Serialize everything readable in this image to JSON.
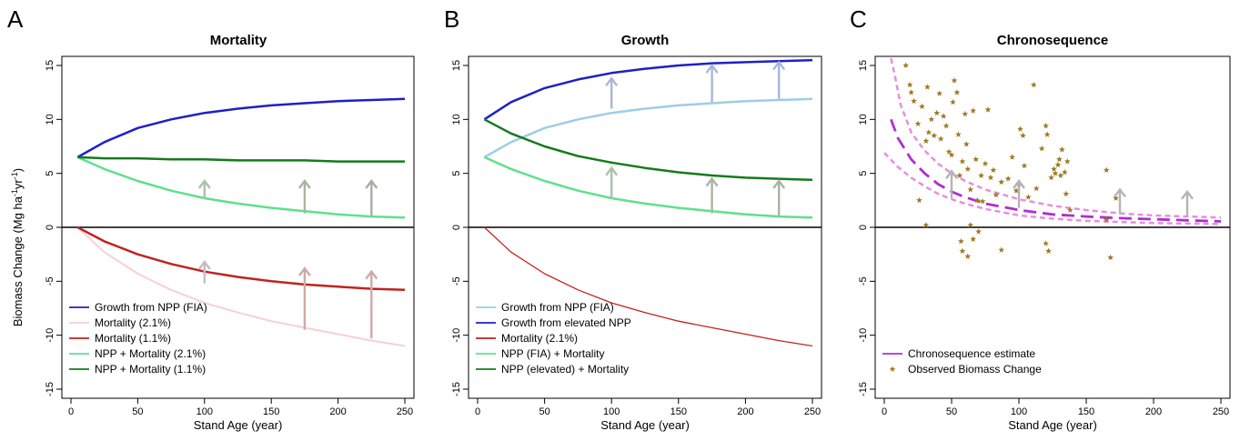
{
  "figure": {
    "ylabel_main": "Biomass Change (Mg ha",
    "ylabel_sup1": "-1",
    "ylabel_mid": "yr",
    "ylabel_sup2": "-1",
    "ylabel_end": ")"
  },
  "chart_data": [
    {
      "letter": "A",
      "title": "Mortality",
      "type": "line",
      "xlabel": "Stand Age (year)",
      "xlim": [
        0,
        250
      ],
      "ylim": [
        -15,
        15
      ],
      "xticks": [
        0,
        50,
        100,
        150,
        200,
        250
      ],
      "yticks": [
        -15,
        -10,
        -5,
        0,
        5,
        10,
        15
      ],
      "x": [
        5,
        25,
        50,
        75,
        100,
        125,
        150,
        175,
        200,
        225,
        250
      ],
      "series": [
        {
          "name": "Growth from NPP (FIA)",
          "color": "#1f1fc8",
          "width": 2.5,
          "values": [
            6.5,
            7.9,
            9.2,
            10.0,
            10.6,
            11.0,
            11.3,
            11.5,
            11.7,
            11.8,
            11.9
          ]
        },
        {
          "name": "Mortality (2.1%)",
          "color": "#f7d0d4",
          "width": 2,
          "values": [
            0,
            -2.3,
            -4.3,
            -5.8,
            -7.0,
            -7.9,
            -8.7,
            -9.3,
            -9.9,
            -10.5,
            -11.0
          ]
        },
        {
          "name": "Mortality (1.1%)",
          "color": "#c0231f",
          "width": 2.5,
          "values": [
            0,
            -1.3,
            -2.5,
            -3.4,
            -4.1,
            -4.6,
            -5.0,
            -5.3,
            -5.5,
            -5.7,
            -5.8
          ]
        },
        {
          "name": "NPP + Mortality (2.1%)",
          "color": "#5fe08d",
          "width": 2.5,
          "values": [
            6.5,
            5.4,
            4.3,
            3.4,
            2.7,
            2.2,
            1.8,
            1.5,
            1.2,
            1.0,
            0.9
          ]
        },
        {
          "name": "NPP + Mortality (1.1%)",
          "color": "#157a1e",
          "width": 2.5,
          "values": [
            6.5,
            6.4,
            6.4,
            6.3,
            6.3,
            6.2,
            6.2,
            6.2,
            6.1,
            6.1,
            6.1
          ]
        }
      ],
      "arrows": [
        {
          "x": 100,
          "y0": 2.6,
          "y1": 4.3,
          "color": "#a8c4a5"
        },
        {
          "x": 175,
          "y0": 1.3,
          "y1": 4.3,
          "color": "#a8b5a3"
        },
        {
          "x": 225,
          "y0": 1.1,
          "y1": 4.3,
          "color": "#a9aca8"
        },
        {
          "x": 100,
          "y0": -5.2,
          "y1": -3.2,
          "color": "#c4bebd"
        },
        {
          "x": 175,
          "y0": -9.5,
          "y1": -3.8,
          "color": "#d0a9a7"
        },
        {
          "x": 225,
          "y0": -10.3,
          "y1": -4.1,
          "color": "#d0a9a7"
        }
      ]
    },
    {
      "letter": "B",
      "title": "Growth",
      "type": "line",
      "xlabel": "Stand Age (year)",
      "xlim": [
        0,
        250
      ],
      "ylim": [
        -15,
        15
      ],
      "xticks": [
        0,
        50,
        100,
        150,
        200,
        250
      ],
      "yticks": [
        -15,
        -10,
        -5,
        0,
        5,
        10,
        15
      ],
      "x": [
        5,
        25,
        50,
        75,
        100,
        125,
        150,
        175,
        200,
        225,
        250
      ],
      "series": [
        {
          "name": "Growth from NPP (FIA)",
          "color": "#9dcde8",
          "width": 2.5,
          "values": [
            6.5,
            7.9,
            9.2,
            10.0,
            10.6,
            11.0,
            11.3,
            11.5,
            11.7,
            11.8,
            11.9
          ]
        },
        {
          "name": "Growth from elevated NPP",
          "color": "#1f1fc8",
          "width": 2.5,
          "values": [
            10.0,
            11.6,
            12.9,
            13.7,
            14.3,
            14.7,
            15.0,
            15.2,
            15.3,
            15.4,
            15.5
          ]
        },
        {
          "name": "Mortality (2.1%)",
          "color": "#c0231f",
          "width": 1.3,
          "values": [
            0,
            -2.3,
            -4.3,
            -5.8,
            -7.0,
            -7.9,
            -8.7,
            -9.3,
            -9.9,
            -10.5,
            -11.0
          ]
        },
        {
          "name": "NPP (FIA) + Mortality",
          "color": "#5fe08d",
          "width": 2.5,
          "values": [
            6.5,
            5.4,
            4.3,
            3.4,
            2.7,
            2.2,
            1.8,
            1.5,
            1.2,
            1.0,
            0.9
          ]
        },
        {
          "name": "NPP (elevated) + Mortality",
          "color": "#157a1e",
          "width": 2.5,
          "values": [
            10.0,
            8.7,
            7.5,
            6.6,
            6.0,
            5.5,
            5.1,
            4.8,
            4.6,
            4.5,
            4.4
          ]
        }
      ],
      "arrows": [
        {
          "x": 100,
          "y0": 2.6,
          "y1": 5.5,
          "color": "#a8c4a5"
        },
        {
          "x": 175,
          "y0": 1.3,
          "y1": 4.5,
          "color": "#a8b5a3"
        },
        {
          "x": 225,
          "y0": 1.0,
          "y1": 4.3,
          "color": "#a8b5a3"
        },
        {
          "x": 100,
          "y0": 11.0,
          "y1": 13.8,
          "color": "#aab6d8"
        },
        {
          "x": 175,
          "y0": 11.6,
          "y1": 15.0,
          "color": "#aab6d8"
        },
        {
          "x": 225,
          "y0": 11.9,
          "y1": 15.3,
          "color": "#aab6d8"
        }
      ]
    },
    {
      "letter": "C",
      "title": "Chronosequence",
      "type": "scatter",
      "xlabel": "Stand Age (year)",
      "xlim": [
        0,
        250
      ],
      "ylim": [
        -15,
        15
      ],
      "xticks": [
        0,
        50,
        100,
        150,
        200,
        250
      ],
      "yticks": [
        -15,
        -10,
        -5,
        0,
        5,
        10,
        15
      ],
      "series": [
        {
          "name": "Chronosequence estimate",
          "color": "#b02ed0",
          "width": 2.8,
          "dash": "14,7",
          "x": [
            5,
            10,
            20,
            30,
            40,
            50,
            60,
            75,
            100,
            125,
            150,
            175,
            200,
            225,
            250
          ],
          "values": [
            10.0,
            8.3,
            6.3,
            5.0,
            4.0,
            3.3,
            2.8,
            2.2,
            1.6,
            1.2,
            1.0,
            0.85,
            0.75,
            0.65,
            0.55
          ]
        },
        {
          "name": "",
          "color": "#e58fe0",
          "width": 2.5,
          "dash": "6,4",
          "x": [
            5,
            8,
            12,
            20,
            30,
            40,
            50,
            60,
            75,
            100,
            125,
            150,
            175,
            200,
            225,
            250
          ],
          "values": [
            16.3,
            14.0,
            11.4,
            8.8,
            7.1,
            5.9,
            5.0,
            4.3,
            3.5,
            2.6,
            2.0,
            1.6,
            1.3,
            1.1,
            1.0,
            0.9
          ]
        },
        {
          "name": "",
          "color": "#e58fe0",
          "width": 2.5,
          "dash": "6,4",
          "x": [
            0,
            10,
            20,
            30,
            40,
            50,
            60,
            75,
            100,
            125,
            150,
            175,
            200,
            225,
            250
          ],
          "values": [
            6.9,
            5.6,
            4.6,
            3.8,
            3.1,
            2.6,
            2.2,
            1.7,
            1.1,
            0.8,
            0.6,
            0.5,
            0.4,
            0.35,
            0.3
          ]
        }
      ],
      "points": {
        "name": "Observed Biomass Change",
        "color": "#9b7a22",
        "marker": "*",
        "xy": [
          [
            16,
            15.0
          ],
          [
            19,
            13.2
          ],
          [
            20,
            12.5
          ],
          [
            22,
            11.7
          ],
          [
            25,
            9.6
          ],
          [
            28,
            11.2
          ],
          [
            31,
            8.0
          ],
          [
            32,
            13.0
          ],
          [
            33,
            8.8
          ],
          [
            35,
            10.0
          ],
          [
            37,
            8.5
          ],
          [
            39,
            10.6
          ],
          [
            41,
            12.4
          ],
          [
            42,
            8.2
          ],
          [
            44,
            10.3
          ],
          [
            46,
            9.4
          ],
          [
            48,
            7.0
          ],
          [
            50,
            6.7
          ],
          [
            51,
            11.6
          ],
          [
            52,
            13.6
          ],
          [
            54,
            12.5
          ],
          [
            55,
            8.6
          ],
          [
            56,
            4.8
          ],
          [
            58,
            6.1
          ],
          [
            60,
            10.5
          ],
          [
            61,
            7.7
          ],
          [
            62,
            5.4
          ],
          [
            64,
            3.5
          ],
          [
            66,
            10.8
          ],
          [
            68,
            6.3
          ],
          [
            69,
            2.5
          ],
          [
            72,
            4.8
          ],
          [
            73,
            2.4
          ],
          [
            75,
            5.9
          ],
          [
            77,
            10.9
          ],
          [
            79,
            4.6
          ],
          [
            81,
            5.3
          ],
          [
            83,
            3.0
          ],
          [
            87,
            4.2
          ],
          [
            92,
            4.5
          ],
          [
            95,
            6.5
          ],
          [
            98,
            3.4
          ],
          [
            100,
            4.0
          ],
          [
            101,
            9.1
          ],
          [
            103,
            8.5
          ],
          [
            104,
            5.7
          ],
          [
            107,
            2.8
          ],
          [
            111,
            13.2
          ],
          [
            113,
            3.6
          ],
          [
            117,
            7.3
          ],
          [
            120,
            9.4
          ],
          [
            121,
            8.6
          ],
          [
            124,
            4.6
          ],
          [
            126,
            5.4
          ],
          [
            127,
            5.0
          ],
          [
            129,
            5.8
          ],
          [
            130,
            6.3
          ],
          [
            131,
            4.8
          ],
          [
            132,
            7.2
          ],
          [
            134,
            5.1
          ],
          [
            135,
            3.1
          ],
          [
            136,
            6.1
          ],
          [
            26,
            2.5
          ],
          [
            31,
            0.2
          ],
          [
            57,
            -1.3
          ],
          [
            58,
            -2.2
          ],
          [
            62,
            -2.7
          ],
          [
            64,
            0.2
          ],
          [
            66,
            -1.1
          ],
          [
            70,
            -0.4
          ],
          [
            87,
            -2.1
          ],
          [
            120,
            -1.5
          ],
          [
            122,
            -2.2
          ],
          [
            138,
            1.6
          ],
          [
            165,
            5.3
          ],
          [
            165,
            0.7
          ],
          [
            172,
            2.7
          ],
          [
            168,
            -2.8
          ]
        ]
      },
      "arrows": [
        {
          "x": 50,
          "y0": 2.7,
          "y1": 5.2,
          "color": "#b4b4b4"
        },
        {
          "x": 100,
          "y0": 1.8,
          "y1": 4.3,
          "color": "#b4b4b4"
        },
        {
          "x": 175,
          "y0": 1.2,
          "y1": 3.5,
          "color": "#b4b4b4"
        },
        {
          "x": 225,
          "y0": 1.0,
          "y1": 3.3,
          "color": "#b4b4b4"
        }
      ]
    }
  ]
}
